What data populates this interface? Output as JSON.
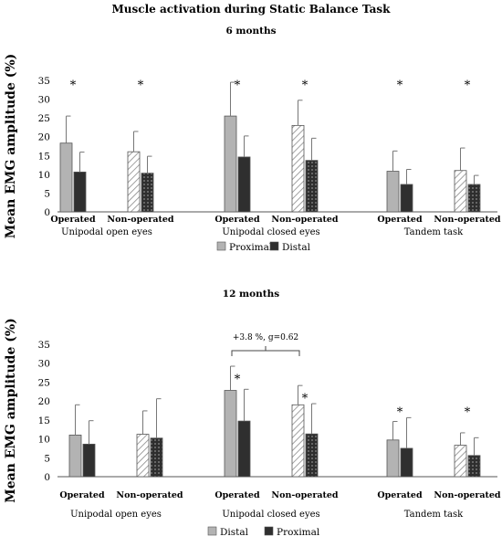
{
  "figure_title": "Muscle activation during Static Balance Task",
  "colors": {
    "proximal": "#b3b3b3",
    "distal": "#3a3a3a",
    "bar_stroke": "#555555",
    "axis": "#555555",
    "text": "#222222"
  },
  "chart_data": [
    {
      "type": "bar",
      "title": "6 months",
      "ylabel": "Mean EMG amplitude (%)",
      "ylim": [
        0,
        35
      ],
      "yticks": [
        0,
        5,
        10,
        15,
        20,
        25,
        30,
        35
      ],
      "groups": [
        "Unipodal open eyes",
        "Unipodal closed eyes",
        "Tandem task"
      ],
      "subcategories": [
        "Operated",
        "Non-operated"
      ],
      "legend": [
        "Proximal",
        "Distal"
      ],
      "series": [
        {
          "name": "Proximal",
          "values": [
            18.3,
            16.0,
            25.5,
            23.0,
            10.8,
            11.0
          ],
          "errors": [
            7.2,
            5.4,
            9.0,
            6.7,
            5.4,
            6.0
          ]
        },
        {
          "name": "Distal",
          "values": [
            10.6,
            10.3,
            14.6,
            13.7,
            7.3,
            7.3
          ],
          "errors": [
            5.3,
            4.5,
            5.6,
            5.9,
            4.0,
            2.4
          ]
        }
      ],
      "significance": [
        "*",
        "*",
        "*",
        "*",
        "*",
        "*"
      ],
      "annotation": null
    },
    {
      "type": "bar",
      "title": "12 months",
      "ylabel": "Mean EMG amplitude (%)",
      "ylim": [
        0,
        35
      ],
      "yticks": [
        0,
        5,
        10,
        15,
        20,
        25,
        30,
        35
      ],
      "groups": [
        "Unipodal open eyes",
        "Unipodal closed eyes",
        "Tandem task"
      ],
      "subcategories": [
        "Operated",
        "Non-operated"
      ],
      "legend": [
        "Distal",
        "Proximal"
      ],
      "series": [
        {
          "name": "Distal",
          "values": [
            11.0,
            11.2,
            22.8,
            19.0,
            9.7,
            8.3
          ],
          "errors": [
            8.0,
            6.2,
            6.4,
            5.1,
            4.9,
            3.3
          ]
        },
        {
          "name": "Proximal",
          "values": [
            8.6,
            10.2,
            14.7,
            11.3,
            7.5,
            5.6
          ],
          "errors": [
            6.2,
            10.4,
            8.4,
            8.0,
            8.1,
            4.7
          ]
        }
      ],
      "significance": [
        "",
        "",
        "*",
        "*",
        "*",
        "*"
      ],
      "annotation": "+3.8 %, g=0.62"
    }
  ]
}
